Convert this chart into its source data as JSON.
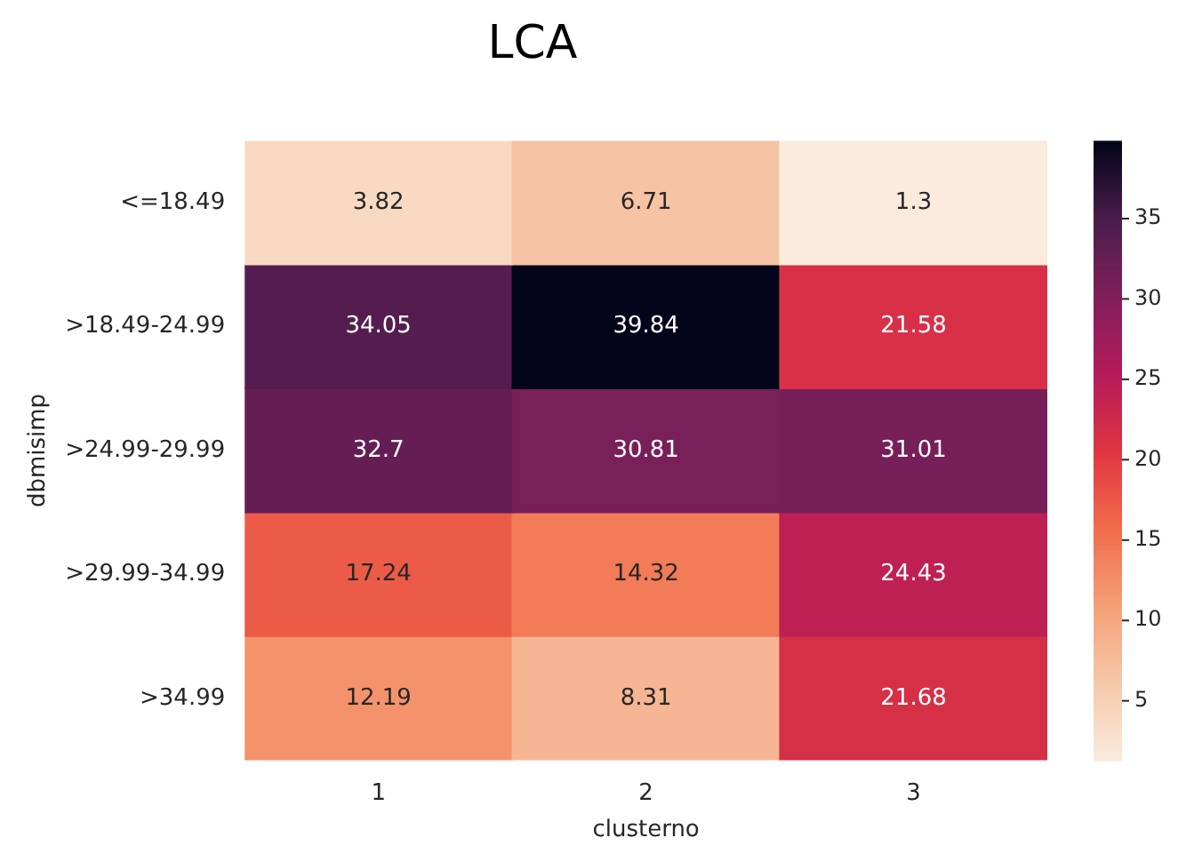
{
  "chart_data": {
    "type": "heatmap",
    "title": "LCA",
    "xlabel": "clusterno",
    "ylabel": "dbmisimp",
    "categories": [
      "1",
      "2",
      "3"
    ],
    "y_categories": [
      "<=18.49",
      ">18.49-24.99",
      ">24.99-29.99",
      ">29.99-34.99",
      ">34.99"
    ],
    "cells": [
      [
        3.82,
        6.71,
        1.3
      ],
      [
        34.05,
        39.84,
        21.58
      ],
      [
        32.7,
        30.81,
        31.01
      ],
      [
        17.24,
        14.32,
        24.43
      ],
      [
        12.19,
        8.31,
        21.68
      ]
    ],
    "data_labels": true,
    "clim": [
      1.3,
      39.84
    ],
    "cticks": [
      5,
      10,
      15,
      20,
      25,
      30,
      35
    ]
  }
}
